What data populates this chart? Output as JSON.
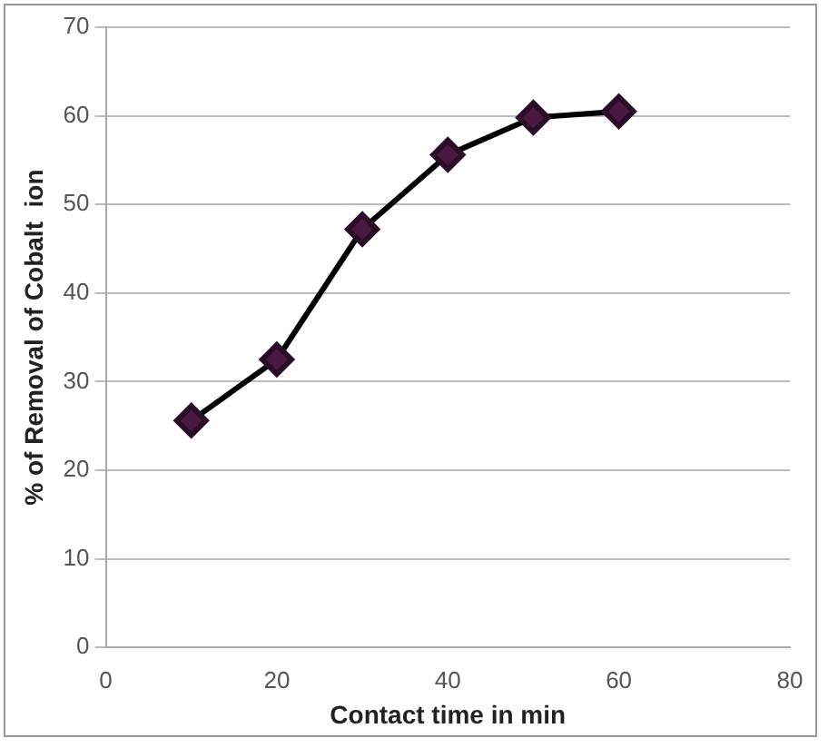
{
  "chart_data": {
    "type": "line",
    "xlabel": "Contact time in min",
    "ylabel": "% of Removal of Cobalt  ion",
    "x": [
      10,
      20,
      30,
      40,
      50,
      60
    ],
    "series": [
      {
        "color": "#000000",
        "values": [
          25.6,
          32.5,
          47.2,
          55.6,
          59.8,
          60.5
        ]
      }
    ],
    "xlim": [
      0,
      80
    ],
    "xticks": [
      0,
      20,
      40,
      60,
      80
    ],
    "ylim": [
      0,
      70
    ],
    "yticks": [
      0,
      10,
      20,
      30,
      40,
      50,
      60,
      70
    ],
    "grid": "y",
    "legend": false,
    "marker": "diamond",
    "line_style": "solid"
  }
}
